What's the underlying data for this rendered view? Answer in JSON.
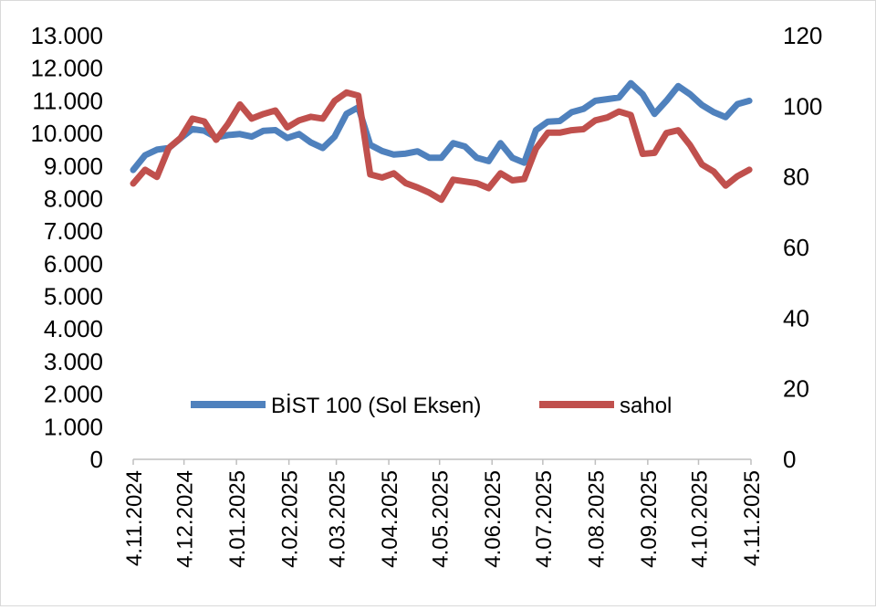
{
  "chart_data": {
    "type": "line",
    "title": "",
    "xlabel": "",
    "ylabel_left": "",
    "ylabel_right": "",
    "ylim_left": [
      0,
      13000
    ],
    "ylim_right": [
      0,
      120
    ],
    "yticks_left": [
      "0",
      "1.000",
      "2.000",
      "3.000",
      "4.000",
      "5.000",
      "6.000",
      "7.000",
      "8.000",
      "9.000",
      "10.000",
      "11.000",
      "12.000",
      "13.000"
    ],
    "yticks_right": [
      "0",
      "20",
      "40",
      "60",
      "80",
      "100",
      "120"
    ],
    "xlim": [
      "2024-11-04",
      "2025-11-04"
    ],
    "xticks": [
      "4.11.2024",
      "4.12.2024",
      "4.01.2025",
      "4.02.2025",
      "4.03.2025",
      "4.04.2025",
      "4.05.2025",
      "4.06.2025",
      "4.07.2025",
      "4.08.2025",
      "4.09.2025",
      "4.10.2025",
      "4.11.2025"
    ],
    "xtick_dates": [
      "2024-11-04",
      "2024-12-04",
      "2025-01-04",
      "2025-02-04",
      "2025-03-04",
      "2025-04-04",
      "2025-05-04",
      "2025-06-04",
      "2025-07-04",
      "2025-08-04",
      "2025-09-04",
      "2025-10-04",
      "2025-11-04"
    ],
    "grid": false,
    "legend_position": "bottom-center inside plot",
    "x": [
      "2024-11-04",
      "2024-11-11",
      "2024-11-18",
      "2024-11-25",
      "2024-12-02",
      "2024-12-09",
      "2024-12-16",
      "2024-12-23",
      "2024-12-30",
      "2025-01-06",
      "2025-01-13",
      "2025-01-20",
      "2025-01-27",
      "2025-02-03",
      "2025-02-10",
      "2025-02-17",
      "2025-02-24",
      "2025-03-03",
      "2025-03-10",
      "2025-03-17",
      "2025-03-24",
      "2025-03-31",
      "2025-04-07",
      "2025-04-14",
      "2025-04-21",
      "2025-04-28",
      "2025-05-05",
      "2025-05-12",
      "2025-05-19",
      "2025-05-26",
      "2025-06-02",
      "2025-06-09",
      "2025-06-16",
      "2025-06-23",
      "2025-06-30",
      "2025-07-07",
      "2025-07-14",
      "2025-07-21",
      "2025-07-28",
      "2025-08-04",
      "2025-08-11",
      "2025-08-18",
      "2025-08-25",
      "2025-09-01",
      "2025-09-08",
      "2025-09-15",
      "2025-09-22",
      "2025-09-29",
      "2025-10-06",
      "2025-10-13",
      "2025-10-20",
      "2025-10-27",
      "2025-11-03"
    ],
    "series": [
      {
        "name": "BİST 100 (Sol Eksen)",
        "axis": "left",
        "color": "#4f81bd",
        "values": [
          8880,
          9330,
          9500,
          9550,
          9850,
          10130,
          10080,
          9880,
          9950,
          9980,
          9900,
          10080,
          10100,
          9860,
          9980,
          9720,
          9550,
          9900,
          10600,
          10800,
          9650,
          9460,
          9350,
          9380,
          9450,
          9250,
          9250,
          9700,
          9600,
          9250,
          9150,
          9700,
          9250,
          9100,
          10100,
          10360,
          10380,
          10650,
          10750,
          11000,
          11050,
          11100,
          11540,
          11200,
          10600,
          11000,
          11450,
          11200,
          10870,
          10650,
          10500,
          10900,
          11000
        ]
      },
      {
        "name": "sahol",
        "axis": "right",
        "color": "#c0504d",
        "values": [
          78.1,
          82.0,
          80.0,
          88.2,
          91.0,
          96.5,
          95.7,
          90.5,
          95.0,
          100.5,
          96.5,
          97.8,
          98.8,
          94.0,
          96.0,
          97.0,
          96.5,
          101.5,
          103.9,
          103.0,
          80.7,
          79.8,
          81.0,
          78.2,
          77.0,
          75.5,
          73.5,
          79.2,
          78.7,
          78.2,
          76.8,
          81.0,
          79.0,
          79.4,
          88.0,
          92.5,
          92.5,
          93.2,
          93.5,
          96.0,
          96.8,
          98.5,
          97.5,
          86.5,
          86.8,
          92.4,
          93.2,
          89.0,
          83.5,
          81.5,
          77.5,
          80.2,
          82.0
        ]
      }
    ]
  }
}
